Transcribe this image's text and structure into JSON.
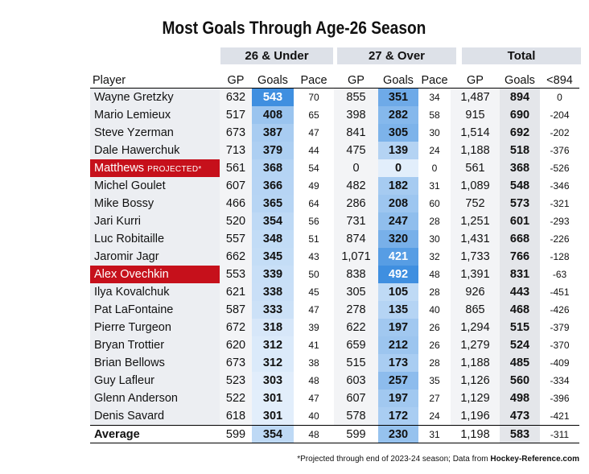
{
  "title": "Most Goals Through Age-26 Season",
  "groups": [
    "26 & Under",
    "27 & Over",
    "Total"
  ],
  "columns": [
    "Player",
    "GP",
    "Goals",
    "Pace",
    "GP",
    "Goals",
    "Pace",
    "GP",
    "Goals",
    "<894"
  ],
  "colors": {
    "goal_low": "#e2eefb",
    "goal_high": "#3f8fe0",
    "highlight": "#c6101b"
  },
  "chart_data": {
    "type": "table",
    "title": "Most Goals Through Age-26 Season",
    "rows": [
      {
        "player": "Wayne Gretzky",
        "u26_gp": "632",
        "u26_goals": "543",
        "u26_pace": "70",
        "o27_gp": "855",
        "o27_goals": "351",
        "o27_pace": "34",
        "tot_gp": "1,487",
        "tot_goals": "894",
        "diff": "0",
        "highlight": false
      },
      {
        "player": "Mario Lemieux",
        "u26_gp": "517",
        "u26_goals": "408",
        "u26_pace": "65",
        "o27_gp": "398",
        "o27_goals": "282",
        "o27_pace": "58",
        "tot_gp": "915",
        "tot_goals": "690",
        "diff": "-204",
        "highlight": false
      },
      {
        "player": "Steve Yzerman",
        "u26_gp": "673",
        "u26_goals": "387",
        "u26_pace": "47",
        "o27_gp": "841",
        "o27_goals": "305",
        "o27_pace": "30",
        "tot_gp": "1,514",
        "tot_goals": "692",
        "diff": "-202",
        "highlight": false
      },
      {
        "player": "Dale Hawerchuk",
        "u26_gp": "713",
        "u26_goals": "379",
        "u26_pace": "44",
        "o27_gp": "475",
        "o27_goals": "139",
        "o27_pace": "24",
        "tot_gp": "1,188",
        "tot_goals": "518",
        "diff": "-376",
        "highlight": false
      },
      {
        "player": "Matthews",
        "tag": "PROJECTED*",
        "u26_gp": "561",
        "u26_goals": "368",
        "u26_pace": "54",
        "o27_gp": "0",
        "o27_goals": "0",
        "o27_pace": "0",
        "tot_gp": "561",
        "tot_goals": "368",
        "diff": "-526",
        "highlight": true
      },
      {
        "player": "Michel Goulet",
        "u26_gp": "607",
        "u26_goals": "366",
        "u26_pace": "49",
        "o27_gp": "482",
        "o27_goals": "182",
        "o27_pace": "31",
        "tot_gp": "1,089",
        "tot_goals": "548",
        "diff": "-346",
        "highlight": false
      },
      {
        "player": "Mike Bossy",
        "u26_gp": "466",
        "u26_goals": "365",
        "u26_pace": "64",
        "o27_gp": "286",
        "o27_goals": "208",
        "o27_pace": "60",
        "tot_gp": "752",
        "tot_goals": "573",
        "diff": "-321",
        "highlight": false
      },
      {
        "player": "Jari Kurri",
        "u26_gp": "520",
        "u26_goals": "354",
        "u26_pace": "56",
        "o27_gp": "731",
        "o27_goals": "247",
        "o27_pace": "28",
        "tot_gp": "1,251",
        "tot_goals": "601",
        "diff": "-293",
        "highlight": false
      },
      {
        "player": "Luc Robitaille",
        "u26_gp": "557",
        "u26_goals": "348",
        "u26_pace": "51",
        "o27_gp": "874",
        "o27_goals": "320",
        "o27_pace": "30",
        "tot_gp": "1,431",
        "tot_goals": "668",
        "diff": "-226",
        "highlight": false
      },
      {
        "player": "Jaromir Jagr",
        "u26_gp": "662",
        "u26_goals": "345",
        "u26_pace": "43",
        "o27_gp": "1,071",
        "o27_goals": "421",
        "o27_pace": "32",
        "tot_gp": "1,733",
        "tot_goals": "766",
        "diff": "-128",
        "highlight": false
      },
      {
        "player": "Alex Ovechkin",
        "u26_gp": "553",
        "u26_goals": "339",
        "u26_pace": "50",
        "o27_gp": "838",
        "o27_goals": "492",
        "o27_pace": "48",
        "tot_gp": "1,391",
        "tot_goals": "831",
        "diff": "-63",
        "highlight": true
      },
      {
        "player": "Ilya Kovalchuk",
        "u26_gp": "621",
        "u26_goals": "338",
        "u26_pace": "45",
        "o27_gp": "305",
        "o27_goals": "105",
        "o27_pace": "28",
        "tot_gp": "926",
        "tot_goals": "443",
        "diff": "-451",
        "highlight": false
      },
      {
        "player": "Pat LaFontaine",
        "u26_gp": "587",
        "u26_goals": "333",
        "u26_pace": "47",
        "o27_gp": "278",
        "o27_goals": "135",
        "o27_pace": "40",
        "tot_gp": "865",
        "tot_goals": "468",
        "diff": "-426",
        "highlight": false
      },
      {
        "player": "Pierre Turgeon",
        "u26_gp": "672",
        "u26_goals": "318",
        "u26_pace": "39",
        "o27_gp": "622",
        "o27_goals": "197",
        "o27_pace": "26",
        "tot_gp": "1,294",
        "tot_goals": "515",
        "diff": "-379",
        "highlight": false
      },
      {
        "player": "Bryan Trottier",
        "u26_gp": "620",
        "u26_goals": "312",
        "u26_pace": "41",
        "o27_gp": "659",
        "o27_goals": "212",
        "o27_pace": "26",
        "tot_gp": "1,279",
        "tot_goals": "524",
        "diff": "-370",
        "highlight": false
      },
      {
        "player": "Brian Bellows",
        "u26_gp": "673",
        "u26_goals": "312",
        "u26_pace": "38",
        "o27_gp": "515",
        "o27_goals": "173",
        "o27_pace": "28",
        "tot_gp": "1,188",
        "tot_goals": "485",
        "diff": "-409",
        "highlight": false
      },
      {
        "player": "Guy Lafleur",
        "u26_gp": "523",
        "u26_goals": "303",
        "u26_pace": "48",
        "o27_gp": "603",
        "o27_goals": "257",
        "o27_pace": "35",
        "tot_gp": "1,126",
        "tot_goals": "560",
        "diff": "-334",
        "highlight": false
      },
      {
        "player": "Glenn Anderson",
        "u26_gp": "522",
        "u26_goals": "301",
        "u26_pace": "47",
        "o27_gp": "607",
        "o27_goals": "197",
        "o27_pace": "27",
        "tot_gp": "1,129",
        "tot_goals": "498",
        "diff": "-396",
        "highlight": false
      },
      {
        "player": "Denis Savard",
        "u26_gp": "618",
        "u26_goals": "301",
        "u26_pace": "40",
        "o27_gp": "578",
        "o27_goals": "172",
        "o27_pace": "24",
        "tot_gp": "1,196",
        "tot_goals": "473",
        "diff": "-421",
        "highlight": false
      }
    ],
    "average": {
      "player": "Average",
      "u26_gp": "599",
      "u26_goals": "354",
      "u26_pace": "48",
      "o27_gp": "599",
      "o27_goals": "230",
      "o27_pace": "31",
      "tot_gp": "1,198",
      "tot_goals": "583",
      "diff": "-311"
    }
  },
  "footnote": {
    "text": "*Projected through end of 2023-24 season; Data from ",
    "source": "Hockey-Reference.com"
  }
}
